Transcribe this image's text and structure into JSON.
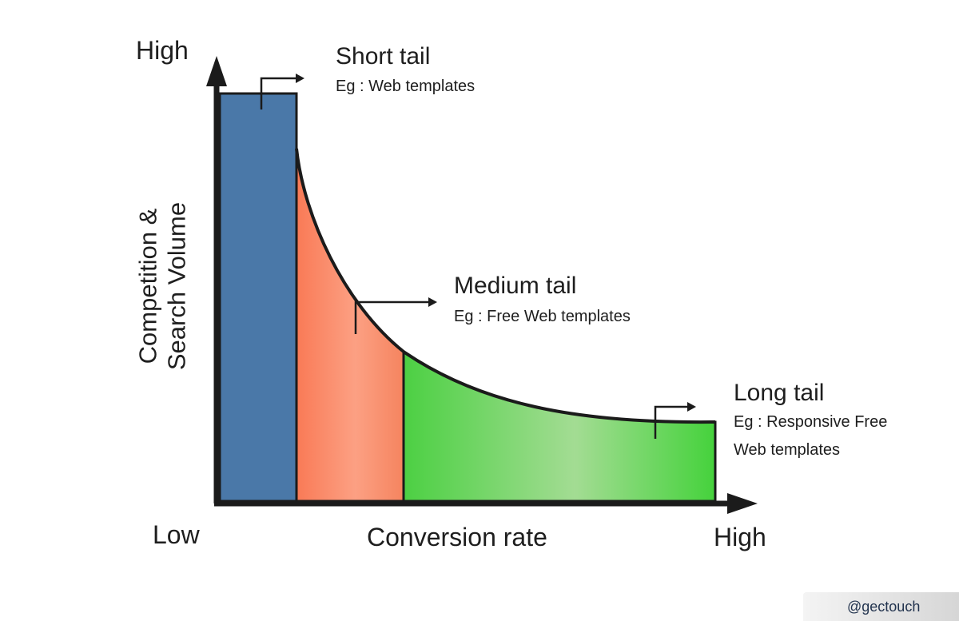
{
  "axes": {
    "y_high": "High",
    "x_low": "Low",
    "x_high": "High",
    "x_label": "Conversion rate",
    "y_label_line1": "Competition &",
    "y_label_line2": "Search Volume"
  },
  "segments": [
    {
      "title": "Short tail",
      "example": "Eg : Web templates",
      "color": "#4a78a8"
    },
    {
      "title": "Medium tail",
      "example": "Eg : Free Web templates",
      "color": "#f9805f"
    },
    {
      "title": "Long tail",
      "example_line1": "Eg : Responsive Free",
      "example_line2": "Web templates",
      "color": "#4fd14a"
    }
  ],
  "watermark": "@gectouch"
}
